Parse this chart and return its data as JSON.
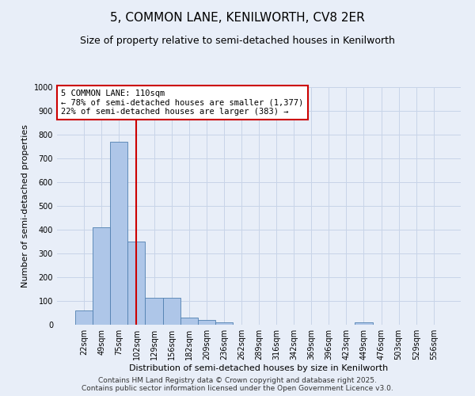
{
  "title": "5, COMMON LANE, KENILWORTH, CV8 2ER",
  "subtitle": "Size of property relative to semi-detached houses in Kenilworth",
  "xlabel": "Distribution of semi-detached houses by size in Kenilworth",
  "ylabel": "Number of semi-detached properties",
  "property_label": "5 COMMON LANE: 110sqm",
  "pct_smaller": 78,
  "count_smaller": 1377,
  "pct_larger": 22,
  "count_larger": 383,
  "annotation_type": "semi-detached",
  "categories": [
    "22sqm",
    "49sqm",
    "75sqm",
    "102sqm",
    "129sqm",
    "156sqm",
    "182sqm",
    "209sqm",
    "236sqm",
    "262sqm",
    "289sqm",
    "316sqm",
    "342sqm",
    "369sqm",
    "396sqm",
    "423sqm",
    "449sqm",
    "476sqm",
    "503sqm",
    "529sqm",
    "556sqm"
  ],
  "values": [
    60,
    410,
    770,
    350,
    115,
    115,
    30,
    20,
    10,
    0,
    0,
    0,
    0,
    0,
    0,
    0,
    10,
    0,
    0,
    0,
    0
  ],
  "bar_color": "#aec6e8",
  "bar_edge_color": "#5080b0",
  "vline_color": "#cc0000",
  "vline_position": 3.0,
  "grid_color": "#c8d4e8",
  "background_color": "#e8eef8",
  "ylim": [
    0,
    1000
  ],
  "yticks": [
    0,
    100,
    200,
    300,
    400,
    500,
    600,
    700,
    800,
    900,
    1000
  ],
  "footer": "Contains HM Land Registry data © Crown copyright and database right 2025.\nContains public sector information licensed under the Open Government Licence v3.0.",
  "title_fontsize": 11,
  "subtitle_fontsize": 9,
  "axis_label_fontsize": 8,
  "tick_fontsize": 7,
  "annotation_fontsize": 7.5,
  "footer_fontsize": 6.5
}
